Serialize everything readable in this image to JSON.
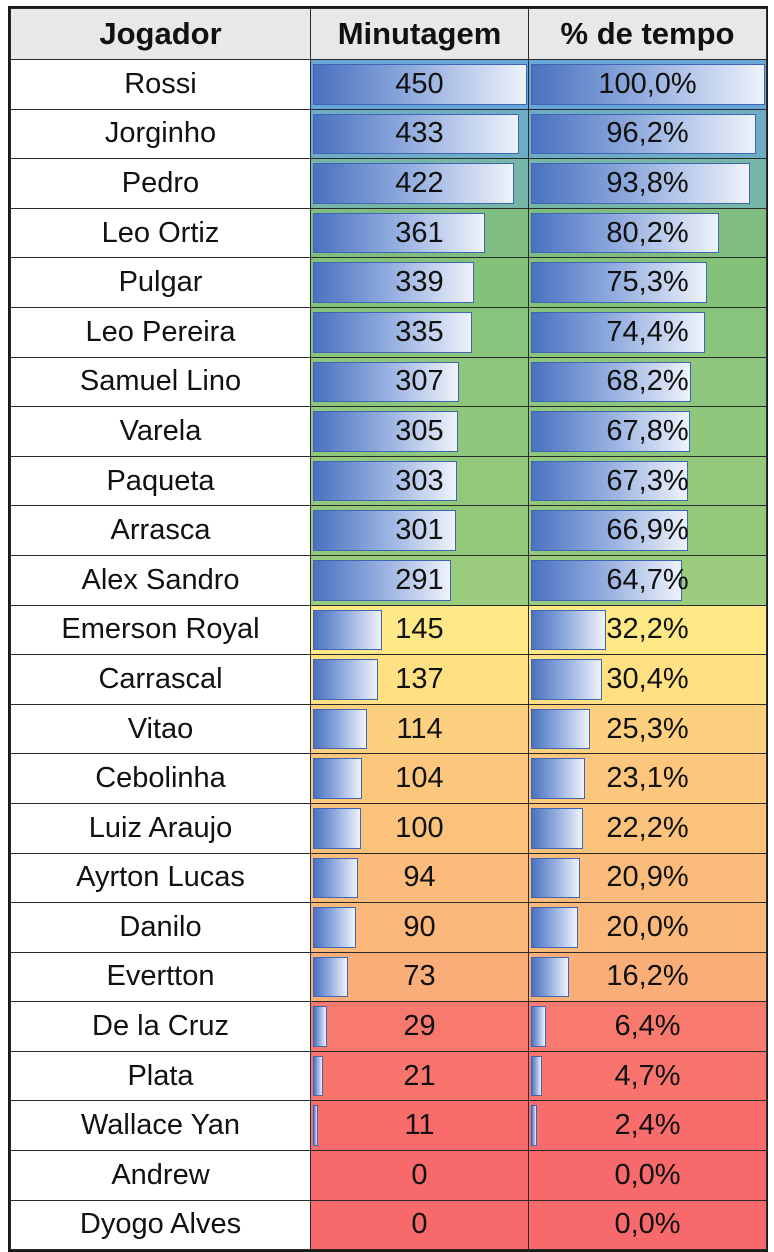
{
  "chart_data": {
    "type": "table",
    "columns": [
      "Jogador",
      "Minutagem",
      "% de tempo"
    ],
    "max_minutes": 450,
    "rows": [
      {
        "player": "Rossi",
        "minutes": 450,
        "minutes_label": "450",
        "pct": 100.0,
        "pct_label": "100,0%",
        "color": "#69a7da"
      },
      {
        "player": "Jorginho",
        "minutes": 433,
        "minutes_label": "433",
        "pct": 96.2,
        "pct_label": "96,2%",
        "color": "#6fadc6"
      },
      {
        "player": "Pedro",
        "minutes": 422,
        "minutes_label": "422",
        "pct": 93.8,
        "pct_label": "93,8%",
        "color": "#77b5a9"
      },
      {
        "player": "Leo Ortiz",
        "minutes": 361,
        "minutes_label": "361",
        "pct": 80.2,
        "pct_label": "80,2%",
        "color": "#7fbe80"
      },
      {
        "player": "Pulgar",
        "minutes": 339,
        "minutes_label": "339",
        "pct": 75.3,
        "pct_label": "75,3%",
        "color": "#84c27a"
      },
      {
        "player": "Leo Pereira",
        "minutes": 335,
        "minutes_label": "335",
        "pct": 74.4,
        "pct_label": "74,4%",
        "color": "#88c47b"
      },
      {
        "player": "Samuel Lino",
        "minutes": 307,
        "minutes_label": "307",
        "pct": 68.2,
        "pct_label": "68,2%",
        "color": "#8dc67c"
      },
      {
        "player": "Varela",
        "minutes": 305,
        "minutes_label": "305",
        "pct": 67.8,
        "pct_label": "67,8%",
        "color": "#8fc77c"
      },
      {
        "player": "Paqueta",
        "minutes": 303,
        "minutes_label": "303",
        "pct": 67.3,
        "pct_label": "67,3%",
        "color": "#91c87c"
      },
      {
        "player": "Arrasca",
        "minutes": 301,
        "minutes_label": "301",
        "pct": 66.9,
        "pct_label": "66,9%",
        "color": "#94c97c"
      },
      {
        "player": "Alex Sandro",
        "minutes": 291,
        "minutes_label": "291",
        "pct": 64.7,
        "pct_label": "64,7%",
        "color": "#9bcb7d"
      },
      {
        "player": "Emerson Royal",
        "minutes": 145,
        "minutes_label": "145",
        "pct": 32.2,
        "pct_label": "32,2%",
        "color": "#ffe886"
      },
      {
        "player": "Carrascal",
        "minutes": 137,
        "minutes_label": "137",
        "pct": 30.4,
        "pct_label": "30,4%",
        "color": "#ffe184"
      },
      {
        "player": "Vitao",
        "minutes": 114,
        "minutes_label": "114",
        "pct": 25.3,
        "pct_label": "25,3%",
        "color": "#fdd07f"
      },
      {
        "player": "Cebolinha",
        "minutes": 104,
        "minutes_label": "104",
        "pct": 23.1,
        "pct_label": "23,1%",
        "color": "#fcc67d"
      },
      {
        "player": "Luiz Araujo",
        "minutes": 100,
        "minutes_label": "100",
        "pct": 22.2,
        "pct_label": "22,2%",
        "color": "#fbc27c"
      },
      {
        "player": "Ayrton Lucas",
        "minutes": 94,
        "minutes_label": "94",
        "pct": 20.9,
        "pct_label": "20,9%",
        "color": "#fbbc7b"
      },
      {
        "player": "Danilo",
        "minutes": 90,
        "minutes_label": "90",
        "pct": 20.0,
        "pct_label": "20,0%",
        "color": "#fab87a"
      },
      {
        "player": "Evertton",
        "minutes": 73,
        "minutes_label": "73",
        "pct": 16.2,
        "pct_label": "16,2%",
        "color": "#f9ad78"
      },
      {
        "player": "De la Cruz",
        "minutes": 29,
        "minutes_label": "29",
        "pct": 6.4,
        "pct_label": "6,4%",
        "color": "#f87a6e"
      },
      {
        "player": "Plata",
        "minutes": 21,
        "minutes_label": "21",
        "pct": 4.7,
        "pct_label": "4,7%",
        "color": "#f8746d"
      },
      {
        "player": "Wallace Yan",
        "minutes": 11,
        "minutes_label": "11",
        "pct": 2.4,
        "pct_label": "2,4%",
        "color": "#f86d6c"
      },
      {
        "player": "Andrew",
        "minutes": 0,
        "minutes_label": "0",
        "pct": 0.0,
        "pct_label": "0,0%",
        "color": "#f8696b"
      },
      {
        "player": "Dyogo Alves",
        "minutes": 0,
        "minutes_label": "0",
        "pct": 0.0,
        "pct_label": "0,0%",
        "color": "#f8696b"
      }
    ]
  }
}
